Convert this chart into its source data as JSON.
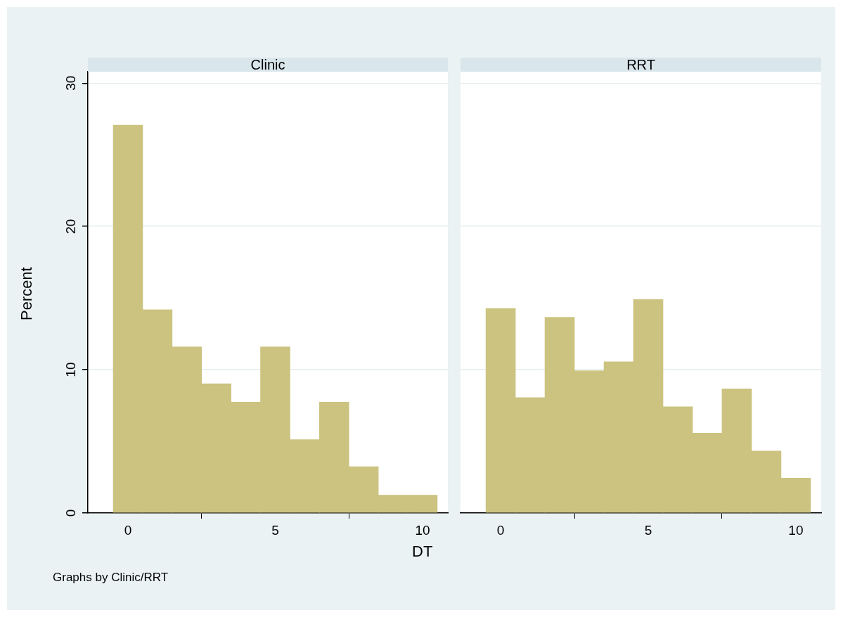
{
  "chart_data": [
    {
      "type": "histogram",
      "title": "Clinic",
      "xlabel": "DT",
      "ylabel": "Percent",
      "bins": [
        -0.5,
        0.5,
        1.5,
        2.5,
        3.5,
        4.5,
        5.5,
        6.5,
        7.5,
        8.5,
        9.5,
        10.5
      ],
      "values": [
        27.07,
        14.18,
        11.6,
        9.02,
        7.73,
        11.6,
        5.12,
        7.73,
        3.23,
        1.25,
        1.25
      ],
      "color": "#cbc37f",
      "xlim": [
        -1.36,
        10.86
      ],
      "xticks": [
        0,
        5,
        10
      ],
      "ylim": [
        0,
        30.8
      ],
      "yticks": [
        0,
        10,
        20,
        30
      ],
      "grid": "y",
      "annotations": [
        "Graphs by Clinic/RRT"
      ]
    },
    {
      "type": "histogram",
      "title": "RRT",
      "bins": [
        -0.5,
        0.5,
        1.5,
        2.5,
        3.5,
        4.5,
        5.5,
        6.5,
        7.5,
        8.5,
        9.5,
        10.5
      ],
      "values": [
        14.28,
        8.05,
        13.66,
        9.93,
        10.55,
        14.91,
        7.42,
        5.57,
        8.67,
        4.32,
        2.44
      ],
      "color": "#cbc37f",
      "xlim": [
        -1.36,
        10.86
      ],
      "xticks": [
        0,
        5,
        10
      ],
      "ylim": [
        0,
        30.8
      ],
      "yticks": [
        0,
        10,
        20,
        30
      ],
      "grid": "y",
      "tick_labels": "x"
    }
  ]
}
